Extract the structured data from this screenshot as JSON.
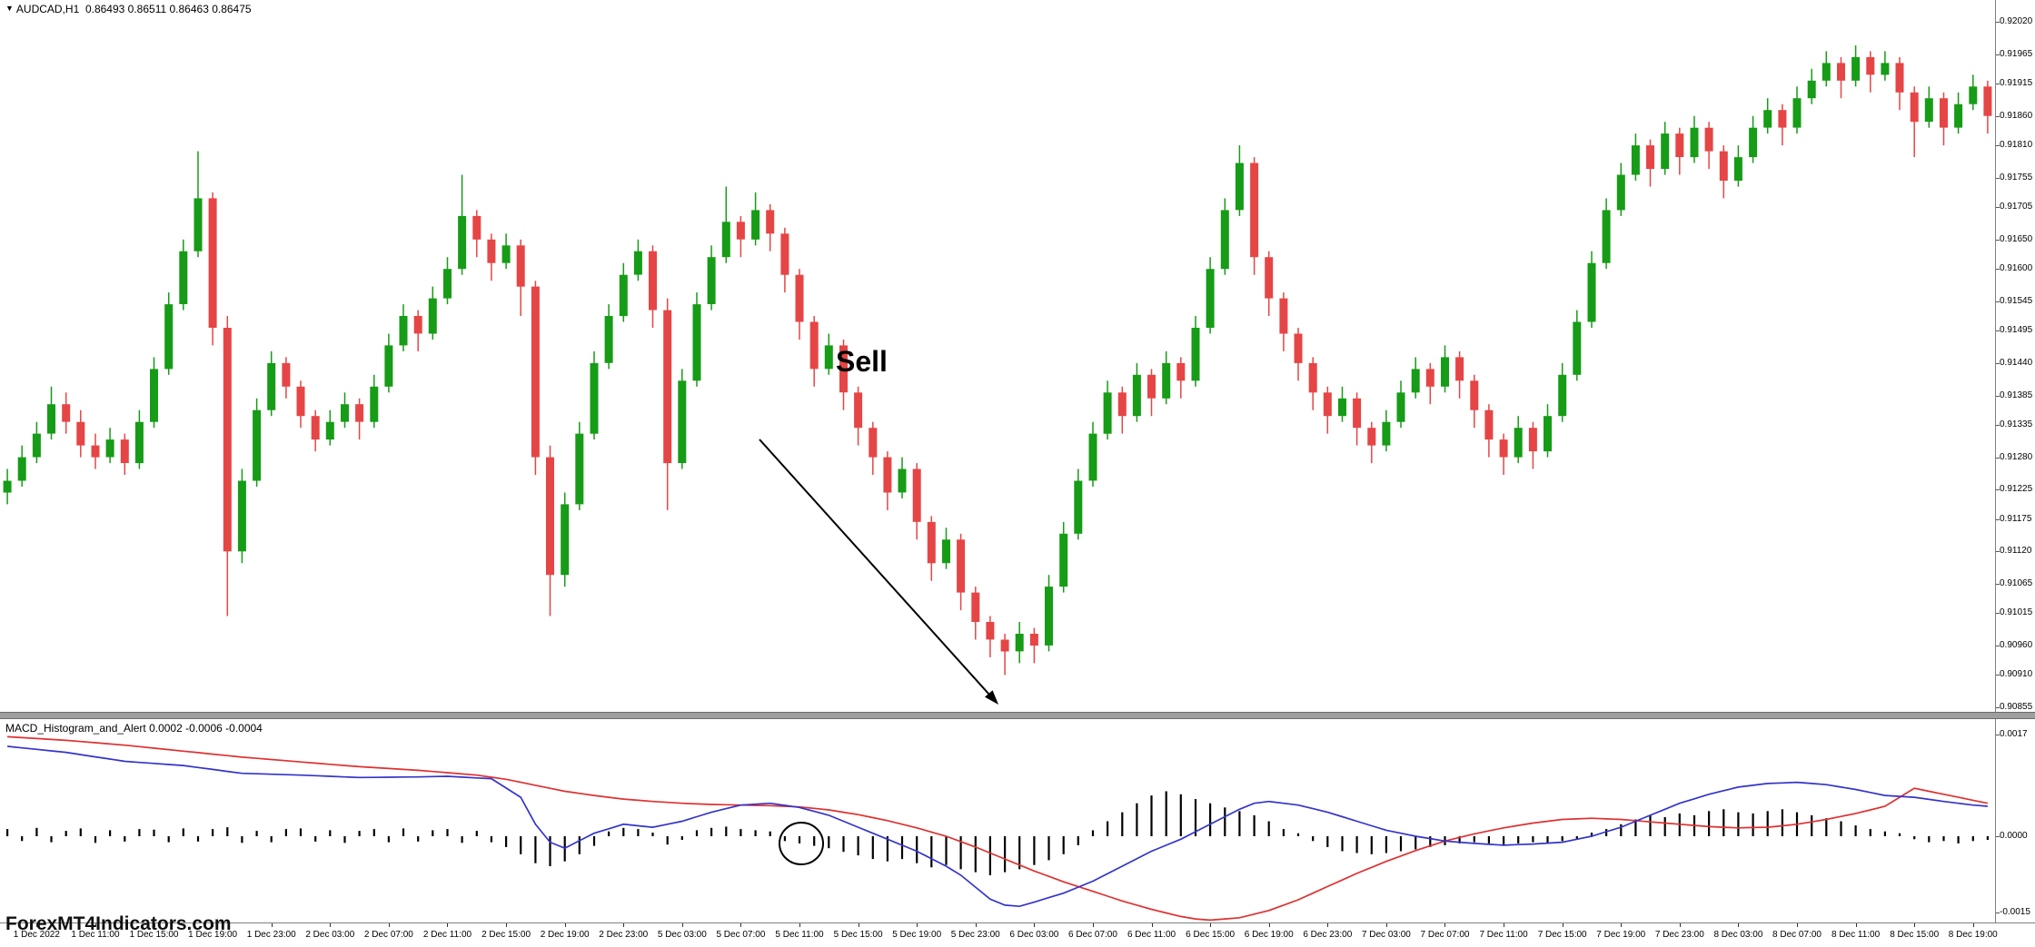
{
  "window": {
    "marker": "▼",
    "symbol": "AUDCAD,H1",
    "ohlc": "0.86493 0.86511 0.86463 0.86475"
  },
  "annotations": {
    "sell_label": "Sell",
    "watermark": "ForexMT4Indicators.com"
  },
  "indicator": {
    "name": "MACD_Histogram_and_Alert",
    "values": "0.0002 -0.0006 -0.0004",
    "axis_labels": [
      "0.0017",
      "0.0000",
      "-0.0015"
    ]
  },
  "price_axis": {
    "labels": [
      "0.92020",
      "0.91965",
      "0.91915",
      "0.91860",
      "0.91810",
      "0.91755",
      "0.91705",
      "0.91650",
      "0.91600",
      "0.91545",
      "0.91495",
      "0.91440",
      "0.91385",
      "0.91335",
      "0.91280",
      "0.91225",
      "0.91175",
      "0.91120",
      "0.91065",
      "0.91015",
      "0.90960",
      "0.90910",
      "0.90855"
    ]
  },
  "time_axis": {
    "labels": [
      "1 Dec 2022",
      "1 Dec 11:00",
      "1 Dec 15:00",
      "1 Dec 19:00",
      "1 Dec 23:00",
      "2 Dec 03:00",
      "2 Dec 07:00",
      "2 Dec 11:00",
      "2 Dec 15:00",
      "2 Dec 19:00",
      "2 Dec 23:00",
      "5 Dec 03:00",
      "5 Dec 07:00",
      "5 Dec 11:00",
      "5 Dec 15:00",
      "5 Dec 19:00",
      "5 Dec 23:00",
      "6 Dec 03:00",
      "6 Dec 07:00",
      "6 Dec 11:00",
      "6 Dec 15:00",
      "6 Dec 19:00",
      "6 Dec 23:00",
      "7 Dec 03:00",
      "7 Dec 07:00",
      "7 Dec 11:00",
      "7 Dec 15:00",
      "7 Dec 19:00",
      "7 Dec 23:00",
      "8 Dec 03:00",
      "8 Dec 07:00",
      "8 Dec 11:00",
      "8 Dec 15:00",
      "8 Dec 19:00"
    ]
  },
  "colors": {
    "up": "#169c16",
    "down": "#e64545",
    "macd_line": "#3333cc",
    "signal_line": "#e03030",
    "histogram": "#000000",
    "separator": "#9e9e9e"
  },
  "chart_data": {
    "type": "candlestick+macd",
    "symbol": "AUDCAD",
    "timeframe": "H1",
    "price_base": 0.9,
    "pip": 0.0001,
    "price_axis_range": [
      0.90855,
      0.9202
    ],
    "macd_axis_range": [
      -0.0015,
      0.0017
    ],
    "candles_ohlc_pips": [
      [
        122,
        126,
        120,
        124
      ],
      [
        124,
        130,
        123,
        128
      ],
      [
        128,
        134,
        127,
        132
      ],
      [
        132,
        140,
        131,
        137
      ],
      [
        137,
        139,
        132,
        134
      ],
      [
        134,
        136,
        128,
        130
      ],
      [
        130,
        132,
        126,
        128
      ],
      [
        128,
        133,
        127,
        131
      ],
      [
        131,
        132,
        125,
        127
      ],
      [
        127,
        136,
        126,
        134
      ],
      [
        134,
        145,
        133,
        143
      ],
      [
        143,
        156,
        142,
        154
      ],
      [
        154,
        165,
        153,
        163
      ],
      [
        163,
        180,
        162,
        172
      ],
      [
        172,
        173,
        147,
        150
      ],
      [
        150,
        152,
        101,
        112
      ],
      [
        112,
        126,
        110,
        124
      ],
      [
        124,
        138,
        123,
        136
      ],
      [
        136,
        146,
        135,
        144
      ],
      [
        144,
        145,
        138,
        140
      ],
      [
        140,
        141,
        133,
        135
      ],
      [
        135,
        136,
        129,
        131
      ],
      [
        131,
        136,
        130,
        134
      ],
      [
        134,
        139,
        133,
        137
      ],
      [
        137,
        138,
        131,
        134
      ],
      [
        134,
        142,
        133,
        140
      ],
      [
        140,
        149,
        139,
        147
      ],
      [
        147,
        154,
        146,
        152
      ],
      [
        152,
        153,
        146,
        149
      ],
      [
        149,
        157,
        148,
        155
      ],
      [
        155,
        162,
        154,
        160
      ],
      [
        160,
        176,
        159,
        169
      ],
      [
        169,
        170,
        162,
        165
      ],
      [
        165,
        166,
        158,
        161
      ],
      [
        161,
        166,
        160,
        164
      ],
      [
        164,
        165,
        152,
        157
      ],
      [
        157,
        158,
        125,
        128
      ],
      [
        128,
        130,
        101,
        108
      ],
      [
        108,
        122,
        106,
        120
      ],
      [
        120,
        134,
        119,
        132
      ],
      [
        132,
        146,
        131,
        144
      ],
      [
        144,
        154,
        143,
        152
      ],
      [
        152,
        161,
        151,
        159
      ],
      [
        159,
        165,
        158,
        163
      ],
      [
        163,
        164,
        150,
        153
      ],
      [
        153,
        155,
        119,
        127
      ],
      [
        127,
        143,
        126,
        141
      ],
      [
        141,
        156,
        140,
        154
      ],
      [
        154,
        164,
        153,
        162
      ],
      [
        162,
        174,
        161,
        168
      ],
      [
        168,
        169,
        162,
        165
      ],
      [
        165,
        173,
        164,
        170
      ],
      [
        170,
        171,
        163,
        166
      ],
      [
        166,
        167,
        156,
        159
      ],
      [
        159,
        160,
        148,
        151
      ],
      [
        151,
        152,
        140,
        143
      ],
      [
        143,
        149,
        142,
        147
      ],
      [
        147,
        148,
        136,
        139
      ],
      [
        139,
        140,
        130,
        133
      ],
      [
        133,
        134,
        125,
        128
      ],
      [
        128,
        129,
        119,
        122
      ],
      [
        122,
        128,
        121,
        126
      ],
      [
        126,
        127,
        114,
        117
      ],
      [
        117,
        118,
        107,
        110
      ],
      [
        110,
        116,
        109,
        114
      ],
      [
        114,
        115,
        102,
        105
      ],
      [
        105,
        106,
        97,
        100
      ],
      [
        100,
        101,
        94,
        97
      ],
      [
        97,
        98,
        91,
        95
      ],
      [
        95,
        100,
        93,
        98
      ],
      [
        98,
        99,
        93,
        96
      ],
      [
        96,
        108,
        95,
        106
      ],
      [
        106,
        117,
        105,
        115
      ],
      [
        115,
        126,
        114,
        124
      ],
      [
        124,
        134,
        123,
        132
      ],
      [
        132,
        141,
        131,
        139
      ],
      [
        139,
        140,
        132,
        135
      ],
      [
        135,
        144,
        134,
        142
      ],
      [
        142,
        143,
        135,
        138
      ],
      [
        138,
        146,
        137,
        144
      ],
      [
        144,
        145,
        138,
        141
      ],
      [
        141,
        152,
        140,
        150
      ],
      [
        150,
        162,
        149,
        160
      ],
      [
        160,
        172,
        159,
        170
      ],
      [
        170,
        181,
        169,
        178
      ],
      [
        178,
        179,
        159,
        162
      ],
      [
        162,
        163,
        152,
        155
      ],
      [
        155,
        156,
        146,
        149
      ],
      [
        149,
        150,
        141,
        144
      ],
      [
        144,
        145,
        136,
        139
      ],
      [
        139,
        140,
        132,
        135
      ],
      [
        135,
        140,
        134,
        138
      ],
      [
        138,
        139,
        130,
        133
      ],
      [
        133,
        134,
        127,
        130
      ],
      [
        130,
        136,
        129,
        134
      ],
      [
        134,
        141,
        133,
        139
      ],
      [
        139,
        145,
        138,
        143
      ],
      [
        143,
        144,
        137,
        140
      ],
      [
        140,
        147,
        139,
        145
      ],
      [
        145,
        146,
        138,
        141
      ],
      [
        141,
        142,
        133,
        136
      ],
      [
        136,
        137,
        128,
        131
      ],
      [
        131,
        132,
        125,
        128
      ],
      [
        128,
        135,
        127,
        133
      ],
      [
        133,
        134,
        126,
        129
      ],
      [
        129,
        137,
        128,
        135
      ],
      [
        135,
        144,
        134,
        142
      ],
      [
        142,
        153,
        141,
        151
      ],
      [
        151,
        163,
        150,
        161
      ],
      [
        161,
        172,
        160,
        170
      ],
      [
        170,
        178,
        169,
        176
      ],
      [
        176,
        183,
        175,
        181
      ],
      [
        181,
        182,
        174,
        177
      ],
      [
        177,
        185,
        176,
        183
      ],
      [
        183,
        184,
        176,
        179
      ],
      [
        179,
        186,
        178,
        184
      ],
      [
        184,
        185,
        177,
        180
      ],
      [
        180,
        181,
        172,
        175
      ],
      [
        175,
        181,
        174,
        179
      ],
      [
        179,
        186,
        178,
        184
      ],
      [
        184,
        189,
        183,
        187
      ],
      [
        187,
        188,
        181,
        184
      ],
      [
        184,
        191,
        183,
        189
      ],
      [
        189,
        194,
        188,
        192
      ],
      [
        192,
        197,
        191,
        195
      ],
      [
        195,
        196,
        189,
        192
      ],
      [
        192,
        198,
        191,
        196
      ],
      [
        196,
        197,
        190,
        193
      ],
      [
        193,
        197,
        192,
        195
      ],
      [
        195,
        196,
        187,
        190
      ],
      [
        190,
        191,
        179,
        185
      ],
      [
        185,
        191,
        184,
        189
      ],
      [
        189,
        190,
        181,
        184
      ],
      [
        184,
        190,
        183,
        188
      ],
      [
        188,
        193,
        187,
        191
      ],
      [
        191,
        192,
        183,
        186
      ]
    ],
    "macd_histogram_e5": [
      12,
      -8,
      14,
      -10,
      9,
      13,
      -11,
      10,
      -9,
      12,
      11,
      -10,
      13,
      -9,
      12,
      15,
      -11,
      9,
      -10,
      12,
      13,
      -9,
      10,
      -11,
      9,
      12,
      -10,
      13,
      -9,
      10,
      12,
      -11,
      9,
      -10,
      -18,
      -30,
      -45,
      -50,
      -42,
      -30,
      -16,
      8,
      14,
      12,
      6,
      -14,
      -6,
      10,
      14,
      16,
      12,
      10,
      8,
      -8,
      -12,
      -16,
      -20,
      -26,
      -32,
      -38,
      -42,
      -38,
      -45,
      -52,
      -48,
      -55,
      -60,
      -65,
      -60,
      -55,
      -48,
      -40,
      -30,
      -15,
      10,
      25,
      40,
      55,
      68,
      75,
      70,
      62,
      55,
      48,
      42,
      35,
      25,
      12,
      5,
      -8,
      -18,
      -25,
      -28,
      -30,
      -28,
      -25,
      -22,
      -18,
      -15,
      -12,
      -10,
      -12,
      -15,
      -12,
      -10,
      -12,
      -8,
      -5,
      6,
      12,
      20,
      28,
      35,
      32,
      38,
      35,
      42,
      45,
      40,
      38,
      42,
      45,
      40,
      35,
      30,
      25,
      18,
      12,
      8,
      5,
      -5,
      -10,
      -8,
      -12,
      -8,
      -6
    ],
    "macd_line_points_e4": [
      [
        0,
        15
      ],
      [
        4,
        14
      ],
      [
        8,
        12.5
      ],
      [
        12,
        11.8
      ],
      [
        16,
        10.5
      ],
      [
        20,
        10.2
      ],
      [
        24,
        9.8
      ],
      [
        28,
        9.9
      ],
      [
        30,
        10
      ],
      [
        33,
        9.6
      ],
      [
        35,
        6.5
      ],
      [
        36,
        2
      ],
      [
        37,
        -1
      ],
      [
        38,
        -2
      ],
      [
        40,
        0.5
      ],
      [
        42,
        2
      ],
      [
        44,
        1.5
      ],
      [
        46,
        2.5
      ],
      [
        48,
        4
      ],
      [
        50,
        5.2
      ],
      [
        52,
        5.5
      ],
      [
        54,
        4.8
      ],
      [
        56,
        3.5
      ],
      [
        58,
        1.5
      ],
      [
        60,
        -0.5
      ],
      [
        62,
        -2.5
      ],
      [
        64,
        -5
      ],
      [
        65,
        -6.5
      ],
      [
        66,
        -8.5
      ],
      [
        67,
        -10.5
      ],
      [
        68,
        -11.5
      ],
      [
        69,
        -11.7
      ],
      [
        70,
        -11
      ],
      [
        72,
        -9.5
      ],
      [
        74,
        -7.5
      ],
      [
        76,
        -5
      ],
      [
        78,
        -2.5
      ],
      [
        80,
        -0.5
      ],
      [
        82,
        2
      ],
      [
        84,
        4.5
      ],
      [
        85,
        5.5
      ],
      [
        86,
        5.8
      ],
      [
        88,
        5.2
      ],
      [
        90,
        4
      ],
      [
        92,
        2.5
      ],
      [
        94,
        1
      ],
      [
        96,
        0
      ],
      [
        98,
        -0.8
      ],
      [
        100,
        -1.2
      ],
      [
        102,
        -1.5
      ],
      [
        104,
        -1.3
      ],
      [
        106,
        -1
      ],
      [
        108,
        0
      ],
      [
        110,
        1.5
      ],
      [
        112,
        3.5
      ],
      [
        114,
        5.5
      ],
      [
        116,
        7
      ],
      [
        118,
        8.2
      ],
      [
        120,
        8.8
      ],
      [
        122,
        9
      ],
      [
        124,
        8.6
      ],
      [
        126,
        7.8
      ],
      [
        128,
        6.8
      ],
      [
        130,
        6.5
      ],
      [
        132,
        5.8
      ],
      [
        134,
        5.2
      ],
      [
        135,
        5
      ]
    ],
    "signal_line_points_e4": [
      [
        0,
        16.6
      ],
      [
        4,
        16
      ],
      [
        8,
        15.2
      ],
      [
        12,
        14.2
      ],
      [
        16,
        13.2
      ],
      [
        20,
        12.4
      ],
      [
        24,
        11.6
      ],
      [
        28,
        11
      ],
      [
        32,
        10.2
      ],
      [
        34,
        9.5
      ],
      [
        36,
        8.5
      ],
      [
        38,
        7.5
      ],
      [
        40,
        6.8
      ],
      [
        42,
        6.2
      ],
      [
        44,
        5.8
      ],
      [
        46,
        5.5
      ],
      [
        48,
        5.3
      ],
      [
        50,
        5.2
      ],
      [
        52,
        5.1
      ],
      [
        54,
        4.9
      ],
      [
        56,
        4.4
      ],
      [
        58,
        3.6
      ],
      [
        60,
        2.6
      ],
      [
        62,
        1.4
      ],
      [
        64,
        0
      ],
      [
        66,
        -1.8
      ],
      [
        68,
        -3.8
      ],
      [
        70,
        -5.8
      ],
      [
        72,
        -7.6
      ],
      [
        74,
        -9.2
      ],
      [
        76,
        -10.8
      ],
      [
        78,
        -12.2
      ],
      [
        80,
        -13.4
      ],
      [
        81,
        -13.8
      ],
      [
        82,
        -14
      ],
      [
        84,
        -13.6
      ],
      [
        86,
        -12.4
      ],
      [
        88,
        -10.6
      ],
      [
        90,
        -8.4
      ],
      [
        92,
        -6.2
      ],
      [
        94,
        -4.2
      ],
      [
        96,
        -2.4
      ],
      [
        98,
        -0.8
      ],
      [
        100,
        0.4
      ],
      [
        102,
        1.4
      ],
      [
        104,
        2.2
      ],
      [
        106,
        2.8
      ],
      [
        108,
        3
      ],
      [
        110,
        2.8
      ],
      [
        112,
        2.4
      ],
      [
        114,
        2
      ],
      [
        116,
        1.6
      ],
      [
        118,
        1.4
      ],
      [
        120,
        1.5
      ],
      [
        122,
        2
      ],
      [
        124,
        2.8
      ],
      [
        126,
        3.8
      ],
      [
        128,
        5
      ],
      [
        130,
        8
      ],
      [
        132,
        7
      ],
      [
        134,
        6
      ],
      [
        135,
        5.5
      ]
    ]
  }
}
